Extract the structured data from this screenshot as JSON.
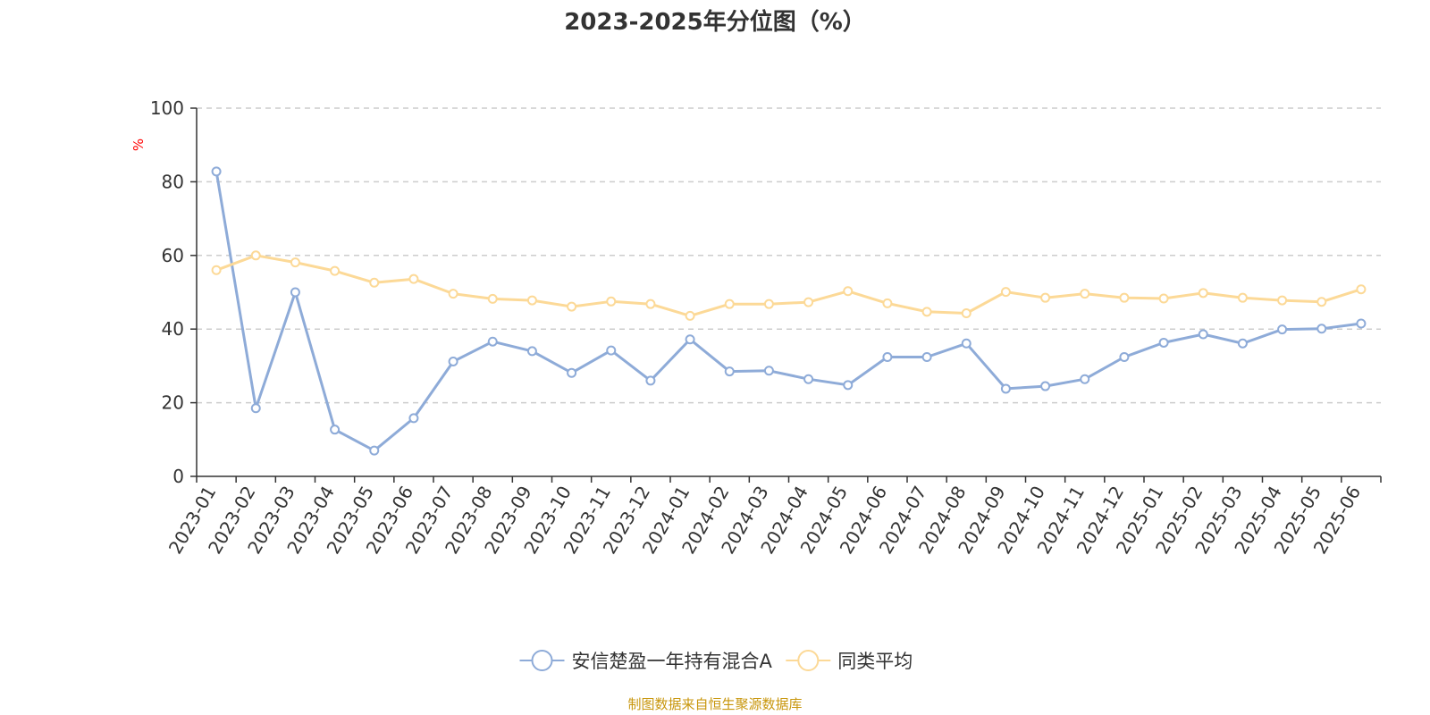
{
  "chart_data": {
    "type": "line",
    "title": "2023-2025年分位图（%）",
    "ylabel": "%",
    "ylim": [
      0,
      100
    ],
    "yticks": [
      "0",
      "20",
      "40",
      "60",
      "80",
      "100"
    ],
    "grid": true,
    "legend_position": "bottom",
    "categories": [
      "2023-01",
      "2023-02",
      "2023-03",
      "2023-04",
      "2023-05",
      "2023-06",
      "2023-07",
      "2023-08",
      "2023-09",
      "2023-10",
      "2023-11",
      "2023-12",
      "2024-01",
      "2024-02",
      "2024-03",
      "2024-04",
      "2024-05",
      "2024-06",
      "2024-07",
      "2024-08",
      "2024-09",
      "2024-10",
      "2024-11",
      "2024-12",
      "2025-01",
      "2025-02",
      "2025-03",
      "2025-04",
      "2025-05",
      "2025-06"
    ],
    "series": [
      {
        "name": "安信楚盈一年持有混合A",
        "color": "#8eabd8",
        "values": [
          82.8,
          18.5,
          50.0,
          12.7,
          7.0,
          15.8,
          31.2,
          36.6,
          34.0,
          28.1,
          34.2,
          26.0,
          37.2,
          28.5,
          28.7,
          26.4,
          24.8,
          32.4,
          32.4,
          36.1,
          23.8,
          24.5,
          26.4,
          32.4,
          36.3,
          38.6,
          36.1,
          39.9,
          40.1,
          41.5
        ]
      },
      {
        "name": "同类平均",
        "color": "#fcd997",
        "values": [
          56.0,
          60.0,
          58.1,
          55.8,
          52.6,
          53.6,
          49.6,
          48.2,
          47.8,
          46.1,
          47.5,
          46.8,
          43.6,
          46.8,
          46.8,
          47.3,
          50.3,
          47.0,
          44.7,
          44.3,
          50.1,
          48.5,
          49.6,
          48.5,
          48.3,
          49.8,
          48.5,
          47.8,
          47.4,
          50.8
        ]
      }
    ]
  },
  "colors": {
    "unit_label": "#ff0000",
    "source": "#c8960c",
    "grid": "#cccccc",
    "axis": "#333333"
  },
  "footer": {
    "source": "制图数据来自恒生聚源数据库"
  }
}
